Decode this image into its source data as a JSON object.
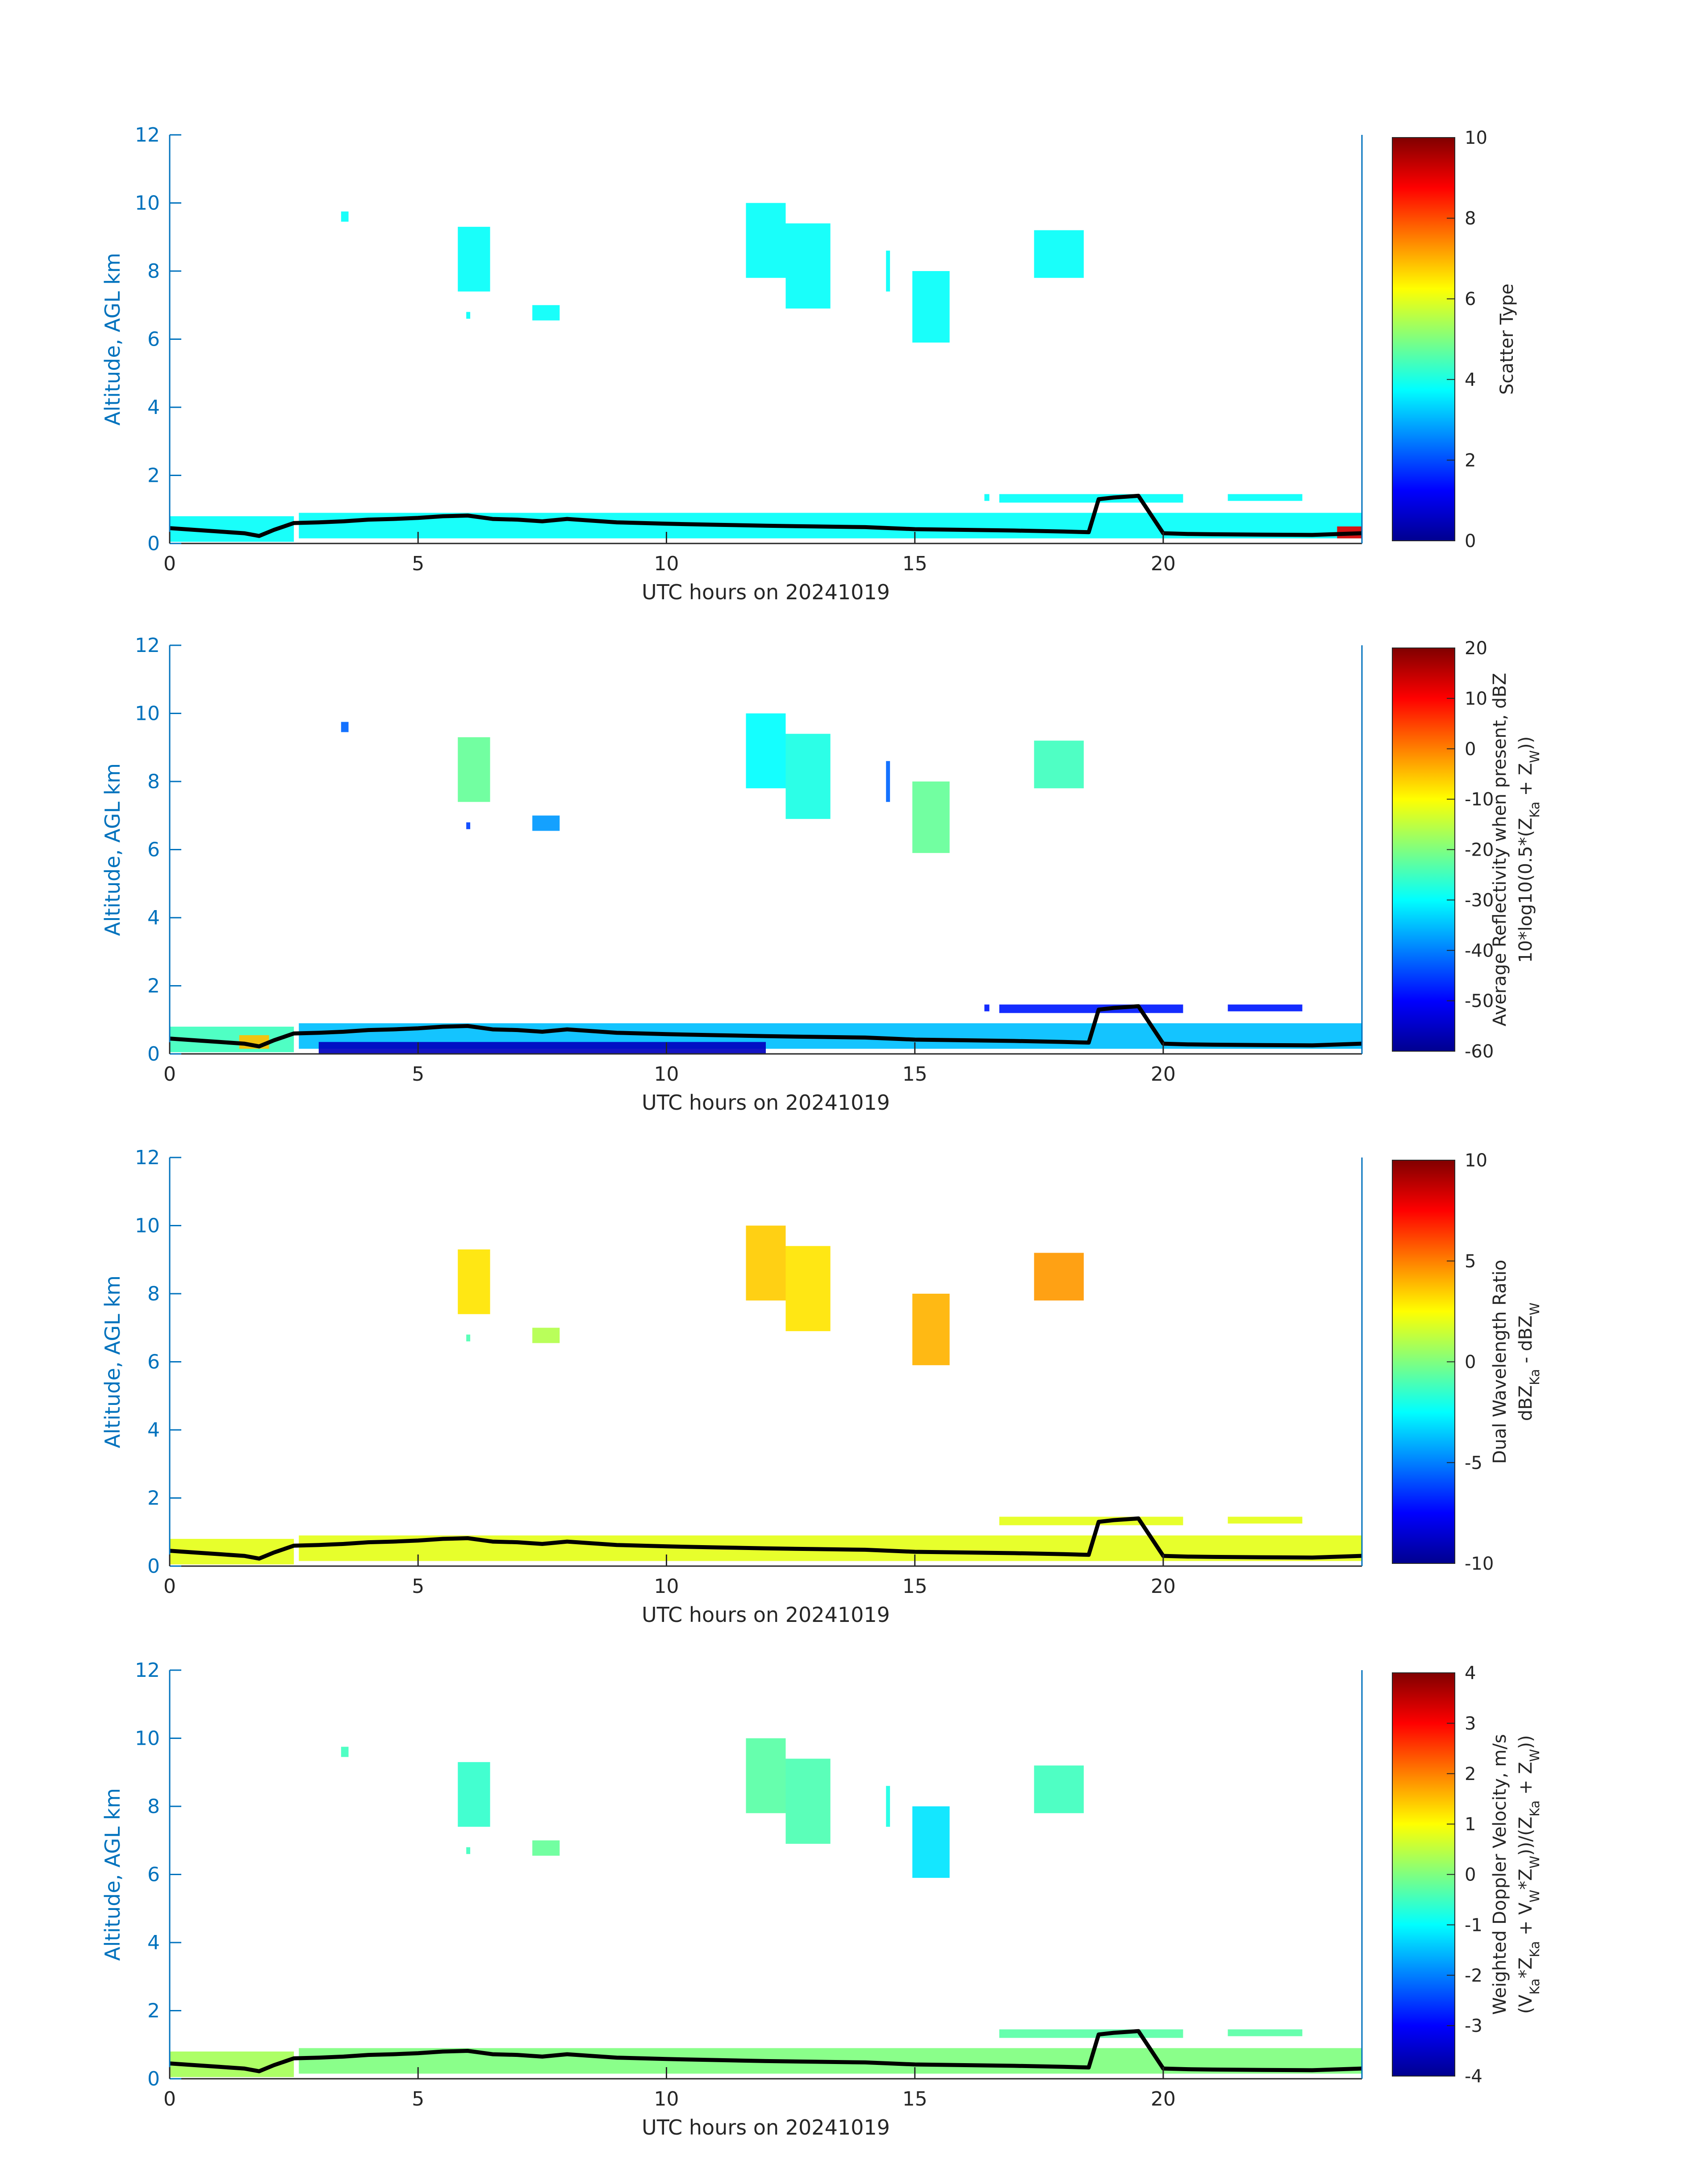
{
  "colors": {
    "axis": "#0072BD",
    "text": "#262626",
    "profile_line": "#000000"
  },
  "chart_data": [
    {
      "type": "heatmap",
      "title": "",
      "xlabel": "UTC hours on 20241019",
      "ylabel": "Altitude, AGL km",
      "xlim": [
        0,
        24
      ],
      "ylim": [
        0,
        12
      ],
      "x_ticks": [
        "0",
        "5",
        "10",
        "15",
        "20"
      ],
      "y_ticks": [
        "0",
        "2",
        "4",
        "6",
        "8",
        "10",
        "12"
      ],
      "colorbar": {
        "label_lines": [
          "Scatter Type"
        ],
        "clim": [
          0,
          10
        ],
        "ticks": [
          "0",
          "2",
          "4",
          "6",
          "8",
          "10"
        ],
        "colormap": "jet"
      },
      "echo_regions": [
        {
          "x": [
            3.45,
            3.6
          ],
          "y": [
            9.45,
            9.75
          ],
          "value": 3.8
        },
        {
          "x": [
            5.8,
            6.45
          ],
          "y": [
            7.4,
            9.3
          ],
          "value": 3.8
        },
        {
          "x": [
            5.97,
            6.05
          ],
          "y": [
            6.6,
            6.8
          ],
          "value": 3.8
        },
        {
          "x": [
            7.3,
            7.85
          ],
          "y": [
            6.55,
            7.0
          ],
          "value": 3.8
        },
        {
          "x": [
            11.6,
            12.4
          ],
          "y": [
            7.8,
            10.0
          ],
          "value": 3.8
        },
        {
          "x": [
            12.4,
            13.3
          ],
          "y": [
            6.9,
            9.4
          ],
          "value": 3.8
        },
        {
          "x": [
            14.42,
            14.5
          ],
          "y": [
            7.4,
            8.6
          ],
          "value": 3.8
        },
        {
          "x": [
            14.95,
            15.7
          ],
          "y": [
            5.9,
            8.0
          ],
          "value": 3.8
        },
        {
          "x": [
            17.4,
            18.4
          ],
          "y": [
            7.8,
            9.2
          ],
          "value": 3.8
        },
        {
          "x": [
            0.0,
            2.5
          ],
          "y": [
            0.05,
            0.8
          ],
          "value": 3.8
        },
        {
          "x": [
            2.6,
            24.0
          ],
          "y": [
            0.15,
            0.9
          ],
          "value": 3.8
        },
        {
          "x": [
            16.4,
            16.5
          ],
          "y": [
            1.25,
            1.45
          ],
          "value": 3.8
        },
        {
          "x": [
            16.7,
            20.4
          ],
          "y": [
            1.2,
            1.45
          ],
          "value": 3.8
        },
        {
          "x": [
            21.3,
            22.8
          ],
          "y": [
            1.25,
            1.45
          ],
          "value": 3.8
        },
        {
          "x": [
            23.5,
            24.0
          ],
          "y": [
            0.15,
            0.5
          ],
          "value": 9.0
        }
      ],
      "profile_line": {
        "x": [
          0,
          0.5,
          1,
          1.5,
          1.8,
          2.1,
          2.5,
          3,
          3.5,
          4,
          4.5,
          5,
          5.5,
          6,
          6.5,
          7,
          7.5,
          8,
          9,
          10,
          11,
          12,
          13,
          14,
          15,
          16,
          17,
          18,
          18.5,
          18.7,
          19,
          19.5,
          20,
          20.5,
          21,
          22,
          23,
          24
        ],
        "y": [
          0.45,
          0.4,
          0.35,
          0.3,
          0.22,
          0.4,
          0.6,
          0.62,
          0.65,
          0.7,
          0.72,
          0.75,
          0.8,
          0.82,
          0.72,
          0.7,
          0.65,
          0.72,
          0.62,
          0.58,
          0.55,
          0.52,
          0.5,
          0.48,
          0.42,
          0.4,
          0.38,
          0.35,
          0.33,
          1.3,
          1.35,
          1.4,
          0.3,
          0.28,
          0.27,
          0.26,
          0.25,
          0.3
        ]
      }
    },
    {
      "type": "heatmap",
      "title": "",
      "xlabel": "UTC hours on 20241019",
      "ylabel": "Altitude, AGL km",
      "xlim": [
        0,
        24
      ],
      "ylim": [
        0,
        12
      ],
      "x_ticks": [
        "0",
        "5",
        "10",
        "15",
        "20"
      ],
      "y_ticks": [
        "0",
        "2",
        "4",
        "6",
        "8",
        "10",
        "12"
      ],
      "colorbar": {
        "label_lines": [
          "Average Reflectivity when present, dBZ",
          "10*log10(0.5*(Z_Ka + Z_W))"
        ],
        "clim": [
          -60,
          20
        ],
        "ticks": [
          "-60",
          "-50",
          "-40",
          "-30",
          "-20",
          "-10",
          "0",
          "10",
          "20"
        ],
        "colormap": "jet"
      },
      "echo_regions": [
        {
          "x": [
            3.45,
            3.6
          ],
          "y": [
            9.45,
            9.75
          ],
          "value": -42
        },
        {
          "x": [
            5.8,
            6.45
          ],
          "y": [
            7.4,
            9.3
          ],
          "value": -22
        },
        {
          "x": [
            5.97,
            6.05
          ],
          "y": [
            6.6,
            6.8
          ],
          "value": -45
        },
        {
          "x": [
            7.3,
            7.85
          ],
          "y": [
            6.55,
            7.0
          ],
          "value": -38
        },
        {
          "x": [
            11.6,
            12.4
          ],
          "y": [
            7.8,
            10.0
          ],
          "value": -30
        },
        {
          "x": [
            12.4,
            13.3
          ],
          "y": [
            6.9,
            9.4
          ],
          "value": -28
        },
        {
          "x": [
            14.42,
            14.5
          ],
          "y": [
            7.4,
            8.6
          ],
          "value": -42
        },
        {
          "x": [
            14.95,
            15.7
          ],
          "y": [
            5.9,
            8.0
          ],
          "value": -22
        },
        {
          "x": [
            17.4,
            18.4
          ],
          "y": [
            7.8,
            9.2
          ],
          "value": -25
        },
        {
          "x": [
            0.0,
            2.5
          ],
          "y": [
            0.05,
            0.8
          ],
          "value": -25
        },
        {
          "x": [
            1.4,
            2.0
          ],
          "y": [
            0.15,
            0.55
          ],
          "value": -5
        },
        {
          "x": [
            2.6,
            24.0
          ],
          "y": [
            0.15,
            0.9
          ],
          "value": -35
        },
        {
          "x": [
            3.0,
            12.0
          ],
          "y": [
            0.02,
            0.35
          ],
          "value": -55
        },
        {
          "x": [
            16.4,
            16.5
          ],
          "y": [
            1.25,
            1.45
          ],
          "value": -48
        },
        {
          "x": [
            16.7,
            20.4
          ],
          "y": [
            1.2,
            1.45
          ],
          "value": -48
        },
        {
          "x": [
            21.3,
            22.8
          ],
          "y": [
            1.25,
            1.45
          ],
          "value": -48
        }
      ],
      "profile_line": {
        "x": [
          0,
          0.5,
          1,
          1.5,
          1.8,
          2.1,
          2.5,
          3,
          3.5,
          4,
          4.5,
          5,
          5.5,
          6,
          6.5,
          7,
          7.5,
          8,
          9,
          10,
          11,
          12,
          13,
          14,
          15,
          16,
          17,
          18,
          18.5,
          18.7,
          19,
          19.5,
          20,
          20.5,
          21,
          22,
          23,
          24
        ],
        "y": [
          0.45,
          0.4,
          0.35,
          0.3,
          0.22,
          0.4,
          0.6,
          0.62,
          0.65,
          0.7,
          0.72,
          0.75,
          0.8,
          0.82,
          0.72,
          0.7,
          0.65,
          0.72,
          0.62,
          0.58,
          0.55,
          0.52,
          0.5,
          0.48,
          0.42,
          0.4,
          0.38,
          0.35,
          0.33,
          1.3,
          1.35,
          1.4,
          0.3,
          0.28,
          0.27,
          0.26,
          0.25,
          0.3
        ]
      }
    },
    {
      "type": "heatmap",
      "title": "",
      "xlabel": "UTC hours on 20241019",
      "ylabel": "Altitude, AGL km",
      "xlim": [
        0,
        24
      ],
      "ylim": [
        0,
        12
      ],
      "x_ticks": [
        "0",
        "5",
        "10",
        "15",
        "20"
      ],
      "y_ticks": [
        "0",
        "2",
        "4",
        "6",
        "8",
        "10",
        "12"
      ],
      "colorbar": {
        "label_lines": [
          "Dual Wavelength Ratio",
          "dBZ_Ka - dBZ_W"
        ],
        "clim": [
          -10,
          10
        ],
        "ticks": [
          "-10",
          "-5",
          "0",
          "5",
          "10"
        ],
        "colormap": "jet"
      },
      "echo_regions": [
        {
          "x": [
            5.8,
            6.45
          ],
          "y": [
            7.4,
            9.3
          ],
          "value": 3.0
        },
        {
          "x": [
            5.97,
            6.05
          ],
          "y": [
            6.6,
            6.8
          ],
          "value": -1.0
        },
        {
          "x": [
            7.3,
            7.85
          ],
          "y": [
            6.55,
            7.0
          ],
          "value": 1.0
        },
        {
          "x": [
            11.6,
            12.4
          ],
          "y": [
            7.8,
            10.0
          ],
          "value": 3.5
        },
        {
          "x": [
            12.4,
            13.3
          ],
          "y": [
            6.9,
            9.4
          ],
          "value": 3.0
        },
        {
          "x": [
            14.95,
            15.7
          ],
          "y": [
            5.9,
            8.0
          ],
          "value": 4.0
        },
        {
          "x": [
            17.4,
            18.4
          ],
          "y": [
            7.8,
            9.2
          ],
          "value": 4.5
        },
        {
          "x": [
            0.0,
            2.5
          ],
          "y": [
            0.05,
            0.8
          ],
          "value": 2.0
        },
        {
          "x": [
            2.6,
            24.0
          ],
          "y": [
            0.15,
            0.9
          ],
          "value": 2.0
        },
        {
          "x": [
            16.7,
            20.4
          ],
          "y": [
            1.2,
            1.45
          ],
          "value": 2.0
        },
        {
          "x": [
            21.3,
            22.8
          ],
          "y": [
            1.25,
            1.45
          ],
          "value": 2.0
        }
      ],
      "profile_line": {
        "x": [
          0,
          0.5,
          1,
          1.5,
          1.8,
          2.1,
          2.5,
          3,
          3.5,
          4,
          4.5,
          5,
          5.5,
          6,
          6.5,
          7,
          7.5,
          8,
          9,
          10,
          11,
          12,
          13,
          14,
          15,
          16,
          17,
          18,
          18.5,
          18.7,
          19,
          19.5,
          20,
          20.5,
          21,
          22,
          23,
          24
        ],
        "y": [
          0.45,
          0.4,
          0.35,
          0.3,
          0.22,
          0.4,
          0.6,
          0.62,
          0.65,
          0.7,
          0.72,
          0.75,
          0.8,
          0.82,
          0.72,
          0.7,
          0.65,
          0.72,
          0.62,
          0.58,
          0.55,
          0.52,
          0.5,
          0.48,
          0.42,
          0.4,
          0.38,
          0.35,
          0.33,
          1.3,
          1.35,
          1.4,
          0.3,
          0.28,
          0.27,
          0.26,
          0.25,
          0.3
        ]
      }
    },
    {
      "type": "heatmap",
      "title": "",
      "xlabel": "UTC hours on 20241019",
      "ylabel": "Altitude, AGL km",
      "xlim": [
        0,
        24
      ],
      "ylim": [
        0,
        12
      ],
      "x_ticks": [
        "0",
        "5",
        "10",
        "15",
        "20"
      ],
      "y_ticks": [
        "0",
        "2",
        "4",
        "6",
        "8",
        "10",
        "12"
      ],
      "colorbar": {
        "label_lines": [
          "Weighted Doppler Velocity, m/s",
          "(V_Ka*Z_Ka + V_W*Z_W))/(Z_Ka + Z_W))"
        ],
        "clim": [
          -4,
          4
        ],
        "ticks": [
          "-4",
          "-3",
          "-2",
          "-1",
          "0",
          "1",
          "2",
          "3",
          "4"
        ],
        "colormap": "jet"
      },
      "echo_regions": [
        {
          "x": [
            3.45,
            3.6
          ],
          "y": [
            9.45,
            9.75
          ],
          "value": -0.5
        },
        {
          "x": [
            5.8,
            6.45
          ],
          "y": [
            7.4,
            9.3
          ],
          "value": -0.6
        },
        {
          "x": [
            5.97,
            6.05
          ],
          "y": [
            6.6,
            6.8
          ],
          "value": -0.5
        },
        {
          "x": [
            7.3,
            7.85
          ],
          "y": [
            6.55,
            7.0
          ],
          "value": -0.2
        },
        {
          "x": [
            11.6,
            12.4
          ],
          "y": [
            7.8,
            10.0
          ],
          "value": -0.3
        },
        {
          "x": [
            12.4,
            13.3
          ],
          "y": [
            6.9,
            9.4
          ],
          "value": -0.4
        },
        {
          "x": [
            14.42,
            14.5
          ],
          "y": [
            7.4,
            8.6
          ],
          "value": -0.8
        },
        {
          "x": [
            14.95,
            15.7
          ],
          "y": [
            5.9,
            8.0
          ],
          "value": -1.2
        },
        {
          "x": [
            17.4,
            18.4
          ],
          "y": [
            7.8,
            9.2
          ],
          "value": -0.5
        },
        {
          "x": [
            0.0,
            2.5
          ],
          "y": [
            0.05,
            0.8
          ],
          "value": 0.3
        },
        {
          "x": [
            2.6,
            24.0
          ],
          "y": [
            0.15,
            0.9
          ],
          "value": 0.0
        },
        {
          "x": [
            16.7,
            20.4
          ],
          "y": [
            1.2,
            1.45
          ],
          "value": -0.3
        },
        {
          "x": [
            21.3,
            22.8
          ],
          "y": [
            1.25,
            1.45
          ],
          "value": -0.3
        }
      ],
      "profile_line": {
        "x": [
          0,
          0.5,
          1,
          1.5,
          1.8,
          2.1,
          2.5,
          3,
          3.5,
          4,
          4.5,
          5,
          5.5,
          6,
          6.5,
          7,
          7.5,
          8,
          9,
          10,
          11,
          12,
          13,
          14,
          15,
          16,
          17,
          18,
          18.5,
          18.7,
          19,
          19.5,
          20,
          20.5,
          21,
          22,
          23,
          24
        ],
        "y": [
          0.45,
          0.4,
          0.35,
          0.3,
          0.22,
          0.4,
          0.6,
          0.62,
          0.65,
          0.7,
          0.72,
          0.75,
          0.8,
          0.82,
          0.72,
          0.7,
          0.65,
          0.72,
          0.62,
          0.58,
          0.55,
          0.52,
          0.5,
          0.48,
          0.42,
          0.4,
          0.38,
          0.35,
          0.33,
          1.3,
          1.35,
          1.4,
          0.3,
          0.28,
          0.27,
          0.26,
          0.25,
          0.3
        ]
      }
    }
  ]
}
